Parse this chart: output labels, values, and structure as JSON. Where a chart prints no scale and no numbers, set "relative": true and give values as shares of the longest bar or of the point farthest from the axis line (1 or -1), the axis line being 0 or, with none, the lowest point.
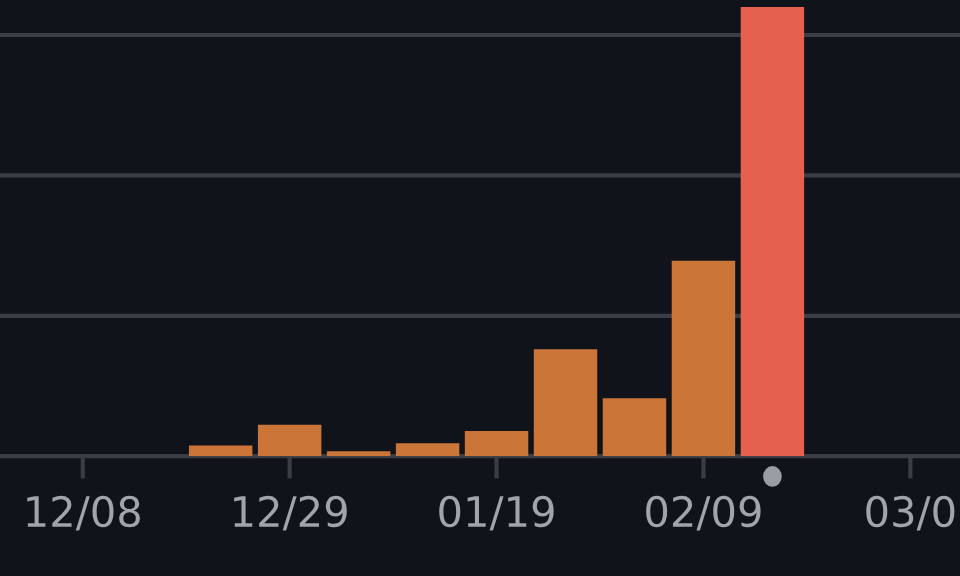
{
  "chart_data": {
    "type": "bar",
    "relative": true,
    "categories": [
      null,
      "12/08",
      null,
      null,
      "12/29",
      null,
      null,
      "01/19",
      null,
      null,
      "02/09",
      null,
      null,
      "03/0"
    ],
    "values": [
      null,
      null,
      null,
      0.024,
      0.07,
      0.011,
      0.029,
      0.056,
      0.238,
      0.129,
      0.435,
      1,
      null,
      null
    ],
    "colors": [
      "#cc7538",
      "#cc7538",
      "#cc7538",
      "#cc7538",
      "#cc7538",
      "#cc7538",
      "#cc7538",
      "#cc7538",
      "#cc7538",
      "#cc7538",
      "#cc7538",
      "#e5604f",
      "#cc7538",
      "#cc7538"
    ],
    "grid": "y"
  }
}
